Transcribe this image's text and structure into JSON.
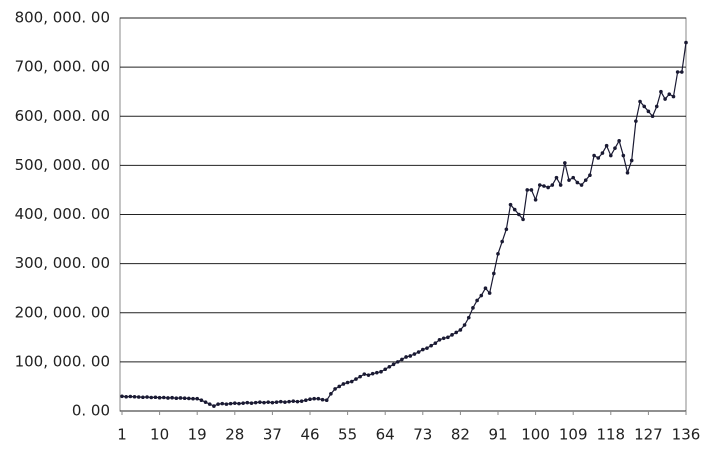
{
  "chart_data": {
    "type": "line",
    "color": "#1a1a33",
    "grid": true,
    "x": [
      1,
      2,
      3,
      4,
      5,
      6,
      7,
      8,
      9,
      10,
      11,
      12,
      13,
      14,
      15,
      16,
      17,
      18,
      19,
      20,
      21,
      22,
      23,
      24,
      25,
      26,
      27,
      28,
      29,
      30,
      31,
      32,
      33,
      34,
      35,
      36,
      37,
      38,
      39,
      40,
      41,
      42,
      43,
      44,
      45,
      46,
      47,
      48,
      49,
      50,
      51,
      52,
      53,
      54,
      55,
      56,
      57,
      58,
      59,
      60,
      61,
      62,
      63,
      64,
      65,
      66,
      67,
      68,
      69,
      70,
      71,
      72,
      73,
      74,
      75,
      76,
      77,
      78,
      79,
      80,
      81,
      82,
      83,
      84,
      85,
      86,
      87,
      88,
      89,
      90,
      91,
      92,
      93,
      94,
      95,
      96,
      97,
      98,
      99,
      100,
      101,
      102,
      103,
      104,
      105,
      106,
      107,
      108,
      109,
      110,
      111,
      112,
      113,
      114,
      115,
      116,
      117,
      118,
      119,
      120,
      121,
      122,
      123,
      124,
      125,
      126,
      127,
      128,
      129,
      130,
      131,
      132,
      133,
      134,
      135,
      136
    ],
    "values": [
      30000,
      29000,
      29500,
      29000,
      28500,
      28000,
      28500,
      27500,
      28000,
      27000,
      27500,
      26500,
      27000,
      26000,
      26500,
      26000,
      25500,
      25000,
      25000,
      22000,
      18000,
      14000,
      10000,
      14000,
      15000,
      14000,
      15000,
      16000,
      15000,
      16000,
      17000,
      16000,
      17000,
      18000,
      17000,
      18000,
      17000,
      18000,
      19000,
      18000,
      19000,
      20000,
      19000,
      20000,
      22000,
      24000,
      25000,
      25000,
      23000,
      22000,
      35000,
      45000,
      50000,
      55000,
      58000,
      60000,
      65000,
      70000,
      75000,
      73000,
      76000,
      78000,
      80000,
      85000,
      90000,
      95000,
      100000,
      105000,
      110000,
      112000,
      116000,
      120000,
      125000,
      128000,
      133000,
      138000,
      145000,
      148000,
      150000,
      155000,
      160000,
      165000,
      175000,
      190000,
      210000,
      225000,
      235000,
      250000,
      240000,
      280000,
      320000,
      345000,
      370000,
      420000,
      410000,
      400000,
      390000,
      450000,
      450000,
      430000,
      460000,
      458000,
      455000,
      460000,
      475000,
      460000,
      505000,
      470000,
      475000,
      465000,
      460000,
      470000,
      480000,
      520000,
      515000,
      525000,
      540000,
      520000,
      535000,
      550000,
      520000,
      485000,
      510000,
      590000,
      630000,
      620000,
      610000,
      600000,
      620000,
      650000,
      635000,
      645000,
      640000,
      690000,
      690000,
      750000
    ],
    "xlim": [
      1,
      136
    ],
    "xticks": [
      1,
      10,
      19,
      28,
      37,
      46,
      55,
      64,
      73,
      82,
      91,
      100,
      109,
      118,
      127,
      136
    ],
    "ylim": [
      0,
      800000
    ],
    "yticks": [
      {
        "value": 0,
        "label": "0. 00"
      },
      {
        "value": 100000,
        "label": "100, 000. 00"
      },
      {
        "value": 200000,
        "label": "200, 000. 00"
      },
      {
        "value": 300000,
        "label": "300, 000. 00"
      },
      {
        "value": 400000,
        "label": "400, 000. 00"
      },
      {
        "value": 500000,
        "label": "500, 000. 00"
      },
      {
        "value": 600000,
        "label": "600, 000. 00"
      },
      {
        "value": 700000,
        "label": "700, 000. 00"
      },
      {
        "value": 800000,
        "label": "800, 000. 00"
      }
    ]
  }
}
